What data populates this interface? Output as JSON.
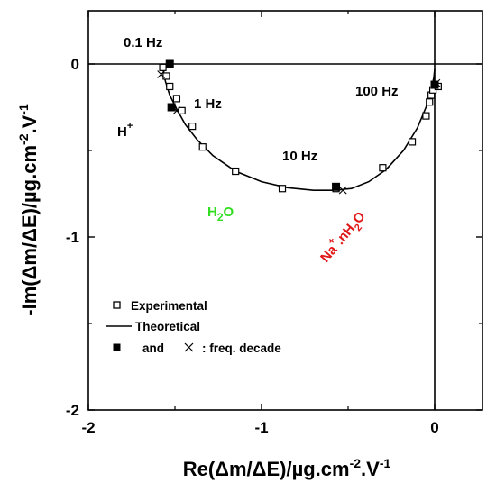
{
  "chart_data": {
    "type": "scatter",
    "xlabel": {
      "main": "Re(Δm/ΔE)/µg.cm",
      "sup1": "-2",
      "mid": ".V",
      "sup2": "-1"
    },
    "ylabel": {
      "main": "-Im(Δm/ΔE)/µg.cm",
      "sup1": "-2",
      "mid": ".V",
      "sup2": "-1"
    },
    "xlim": [
      -2,
      0.3
    ],
    "ylim": [
      -2,
      0.35
    ],
    "y_inverted": true,
    "x_ticks": [
      -2,
      -1,
      0
    ],
    "x_tick_labels": [
      "-2",
      "-1",
      "0"
    ],
    "y_ticks": [
      0,
      -1,
      -2
    ],
    "y_tick_labels": [
      "0",
      "-1",
      "-2"
    ],
    "reference_lines": {
      "x": 0,
      "y": 0
    },
    "grid": false,
    "legend_position": "bottom-left",
    "series": [
      {
        "name": "Experimental",
        "marker": "open-square",
        "x": [
          -1.57,
          -1.55,
          -1.53,
          -1.49,
          -1.46,
          -1.4,
          -1.34,
          -1.15,
          -0.88,
          -0.57,
          -0.3,
          -0.13,
          -0.05,
          -0.03,
          -0.02,
          -0.01,
          0.02
        ],
        "y": [
          -0.02,
          -0.07,
          -0.13,
          -0.2,
          -0.27,
          -0.36,
          -0.48,
          -0.62,
          -0.72,
          -0.72,
          -0.6,
          -0.45,
          -0.3,
          -0.22,
          -0.18,
          -0.15,
          -0.13
        ]
      },
      {
        "name": "Theoretical",
        "line": "solid",
        "x": [
          -1.575,
          -1.555,
          -1.53,
          -1.49,
          -1.44,
          -1.37,
          -1.28,
          -1.15,
          -1.0,
          -0.85,
          -0.7,
          -0.58,
          -0.48,
          -0.38,
          -0.28,
          -0.18,
          -0.1,
          -0.05,
          -0.02,
          -0.005,
          0.0
        ],
        "y": [
          0.0,
          -0.1,
          -0.18,
          -0.26,
          -0.35,
          -0.44,
          -0.53,
          -0.62,
          -0.68,
          -0.715,
          -0.73,
          -0.73,
          -0.72,
          -0.68,
          -0.61,
          -0.5,
          -0.37,
          -0.25,
          -0.15,
          -0.08,
          -0.03
        ]
      },
      {
        "name": "freq. decade (filled square)",
        "marker": "filled-square",
        "x": [
          -1.53,
          -1.52,
          -0.57,
          0.0
        ],
        "y": [
          0.0,
          -0.25,
          -0.71,
          -0.12
        ]
      },
      {
        "name": "freq. decade (cross)",
        "marker": "x",
        "x": [
          -1.58,
          -1.49,
          -0.53,
          0.01
        ],
        "y": [
          -0.06,
          -0.27,
          -0.73,
          -0.11
        ]
      }
    ],
    "annotations": {
      "hz_01": "0.1 Hz",
      "hz_1": "1 Hz",
      "hz_10": "10 Hz",
      "hz_100": "100 Hz",
      "h_plus_base": "H",
      "h_plus_sup": "+",
      "h2o_h": "H",
      "h2o_sub": "2",
      "h2o_o": "O",
      "na_base": "Na",
      "na_sup": "+",
      "na_mid": ".nH",
      "na_sub": "2",
      "na_o": "O"
    },
    "colors": {
      "h2o": "#33dd22",
      "na": "#e01818",
      "axes": "#000000"
    },
    "legend": {
      "experimental": "Experimental",
      "theoretical": "Theoretical",
      "and": "and",
      "freq": ": freq. decade"
    }
  }
}
